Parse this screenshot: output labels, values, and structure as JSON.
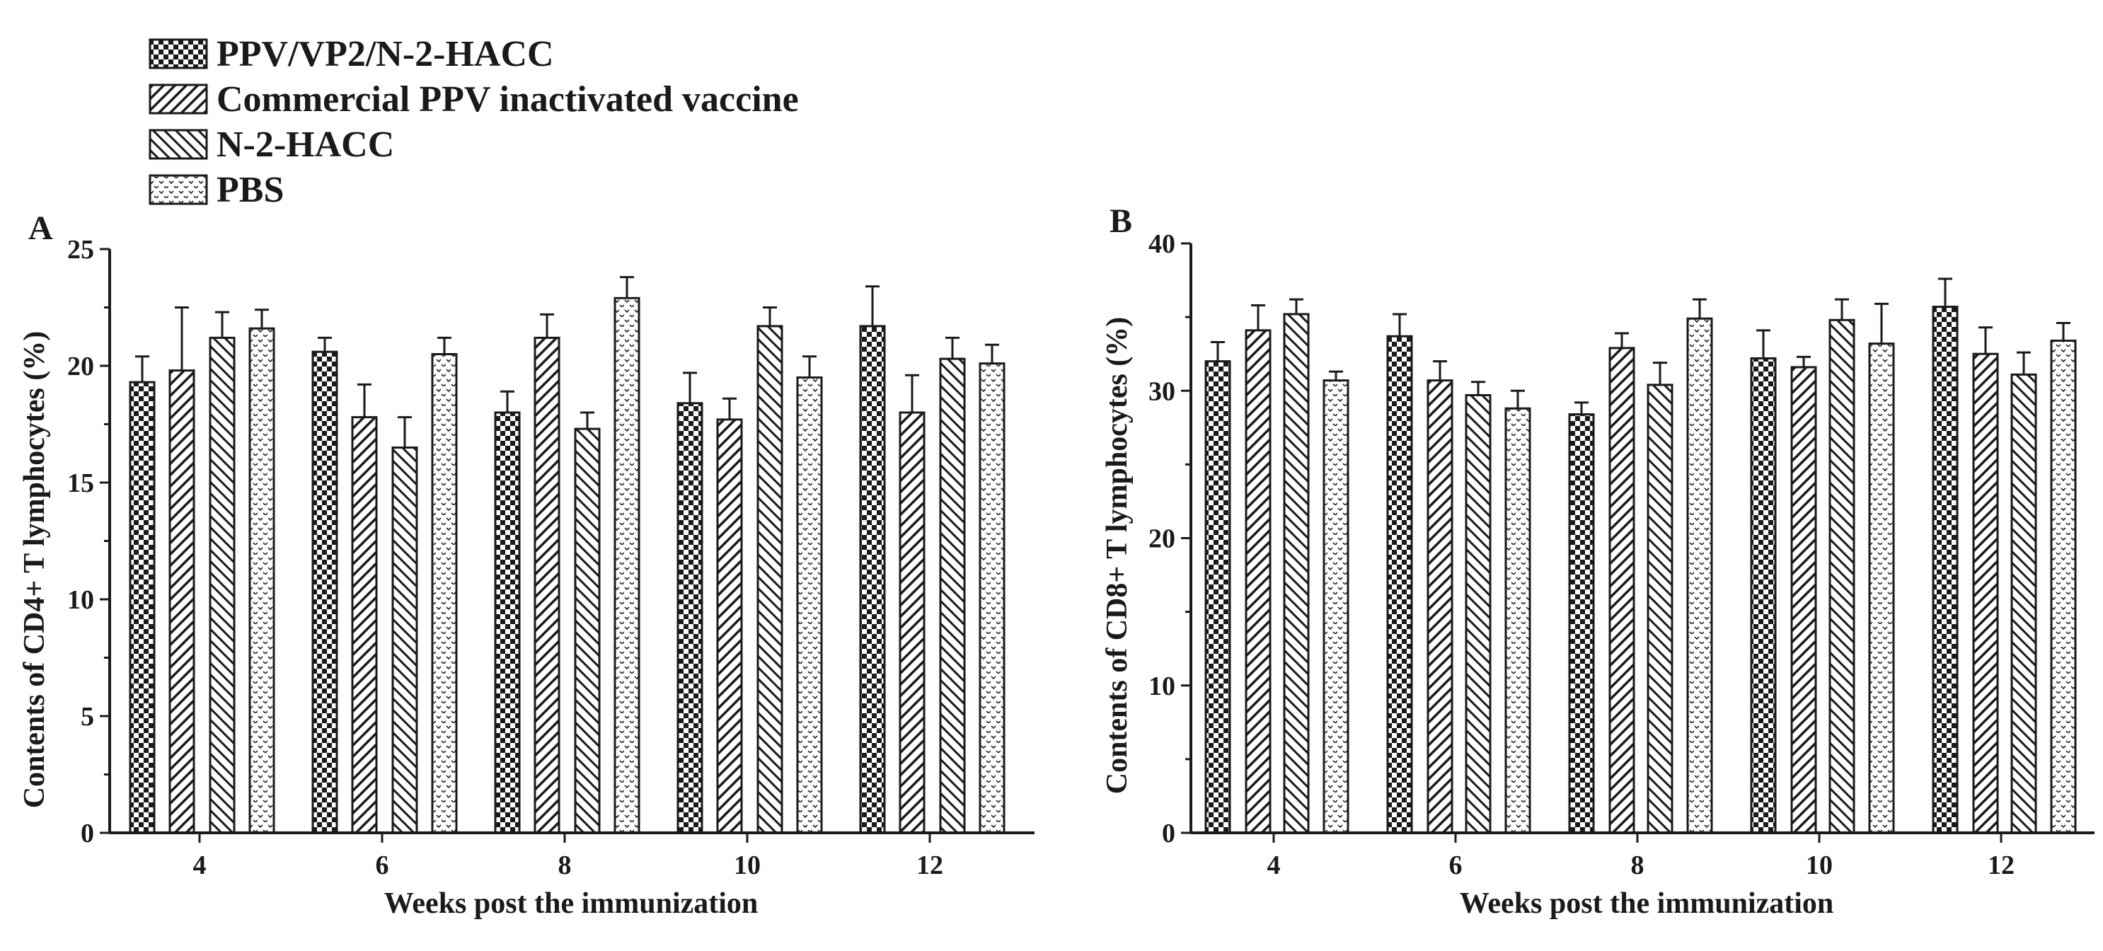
{
  "legend": [
    {
      "label": "PPV/VP2/N-2-HACC",
      "pattern": "checker"
    },
    {
      "label": "Commercial PPV inactivated vaccine",
      "pattern": "diag-right"
    },
    {
      "label": "N-2-HACC",
      "pattern": "diag-left"
    },
    {
      "label": "PBS",
      "pattern": "dots"
    }
  ],
  "colors": {
    "ink": "#1a1a1a",
    "background": "#ffffff"
  },
  "chart_data": [
    {
      "panel": "A",
      "type": "bar",
      "xlabel": "Weeks post the immunization",
      "ylabel": "Contents of CD4+ T lymphocytes (%)",
      "ylim": [
        0,
        25
      ],
      "yticks": [
        0,
        5,
        10,
        15,
        20,
        25
      ],
      "categories": [
        "4",
        "6",
        "8",
        "10",
        "12"
      ],
      "series": [
        {
          "name": "PPV/VP2/N-2-HACC",
          "values": [
            19.3,
            20.6,
            18.0,
            18.4,
            21.7
          ],
          "errors": [
            1.1,
            0.6,
            0.9,
            1.3,
            1.7
          ]
        },
        {
          "name": "Commercial PPV inactivated vaccine",
          "values": [
            19.8,
            17.8,
            21.2,
            17.7,
            18.0
          ],
          "errors": [
            2.7,
            1.4,
            1.0,
            0.9,
            1.6
          ]
        },
        {
          "name": "N-2-HACC",
          "values": [
            21.2,
            16.5,
            17.3,
            21.7,
            20.3
          ],
          "errors": [
            1.1,
            1.3,
            0.7,
            0.8,
            0.9
          ]
        },
        {
          "name": "PBS",
          "values": [
            21.6,
            20.5,
            22.9,
            19.5,
            20.1
          ],
          "errors": [
            0.8,
            0.7,
            0.9,
            0.9,
            0.8
          ]
        }
      ]
    },
    {
      "panel": "B",
      "type": "bar",
      "xlabel": "Weeks post the immunization",
      "ylabel": "Contents of CD8+ T lymphocytes (%)",
      "ylim": [
        0,
        40
      ],
      "yticks": [
        0,
        10,
        20,
        30,
        40
      ],
      "categories": [
        "4",
        "6",
        "8",
        "10",
        "12"
      ],
      "series": [
        {
          "name": "PPV/VP2/N-2-HACC",
          "values": [
            32.0,
            33.7,
            28.4,
            32.2,
            35.7
          ],
          "errors": [
            1.3,
            1.5,
            0.8,
            1.9,
            1.9
          ]
        },
        {
          "name": "Commercial PPV inactivated vaccine",
          "values": [
            34.1,
            30.7,
            32.9,
            31.6,
            32.5
          ],
          "errors": [
            1.7,
            1.3,
            1.0,
            0.7,
            1.8
          ]
        },
        {
          "name": "N-2-HACC",
          "values": [
            35.2,
            29.7,
            30.4,
            34.8,
            31.1
          ],
          "errors": [
            1.0,
            0.9,
            1.5,
            1.4,
            1.5
          ]
        },
        {
          "name": "PBS",
          "values": [
            30.7,
            28.8,
            34.9,
            33.2,
            33.4
          ],
          "errors": [
            0.6,
            1.2,
            1.3,
            2.7,
            1.2
          ]
        }
      ]
    }
  ]
}
